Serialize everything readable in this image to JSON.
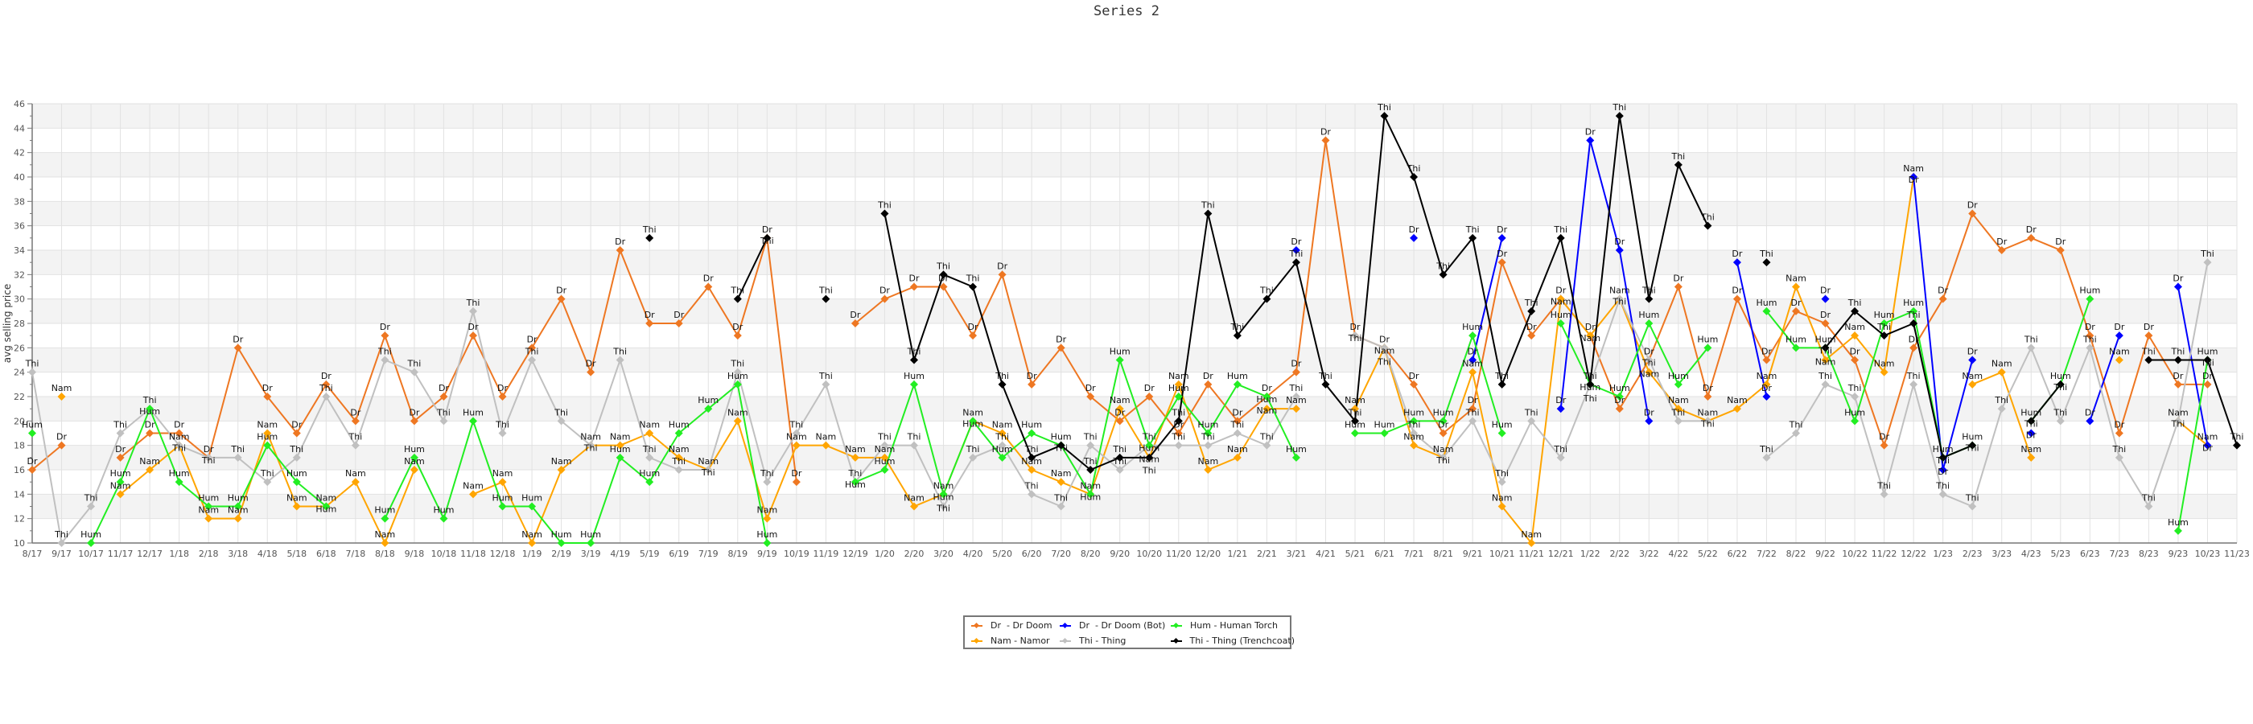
{
  "chart_data": {
    "type": "line",
    "title": "Series 2",
    "xlabel": "",
    "ylabel": "avg selling price",
    "ylim": [
      10,
      46
    ],
    "ytick_step": 2,
    "grid": true,
    "legend_position": "bottom-center",
    "categories": [
      "8/17",
      "9/17",
      "10/17",
      "11/17",
      "12/17",
      "1/18",
      "2/18",
      "3/18",
      "4/18",
      "5/18",
      "6/18",
      "7/18",
      "8/18",
      "9/18",
      "10/18",
      "11/18",
      "12/18",
      "1/19",
      "2/19",
      "3/19",
      "4/19",
      "5/19",
      "6/19",
      "7/19",
      "8/19",
      "9/19",
      "10/19",
      "11/19",
      "12/19",
      "1/20",
      "2/20",
      "3/20",
      "4/20",
      "5/20",
      "6/20",
      "7/20",
      "8/20",
      "9/20",
      "10/20",
      "11/20",
      "12/20",
      "1/21",
      "2/21",
      "3/21",
      "4/21",
      "5/21",
      "6/21",
      "7/21",
      "8/21",
      "9/21",
      "10/21",
      "11/21",
      "12/21",
      "1/22",
      "2/22",
      "3/22",
      "4/22",
      "5/22",
      "6/22",
      "7/22",
      "8/22",
      "9/22",
      "10/22",
      "11/22",
      "12/22",
      "1/23",
      "2/23",
      "3/23",
      "4/23",
      "5/23",
      "6/23",
      "7/23",
      "8/23",
      "9/23",
      "10/23",
      "11/23"
    ],
    "series": [
      {
        "name": "Dr Doom",
        "point_label": "Dr",
        "legend": "Dr  - Dr Doom",
        "color": "#ee7722",
        "values": [
          16,
          18,
          null,
          17,
          19,
          19,
          17,
          26,
          22,
          19,
          23,
          20,
          27,
          20,
          22,
          27,
          22,
          26,
          30,
          24,
          34,
          28,
          28,
          31,
          27,
          35,
          15,
          null,
          28,
          30,
          31,
          31,
          27,
          32,
          23,
          26,
          22,
          20,
          22,
          19,
          23,
          20,
          22,
          24,
          43,
          27,
          26,
          23,
          19,
          21,
          33,
          27,
          30,
          27,
          21,
          25,
          31,
          22,
          30,
          25,
          29,
          28,
          25,
          18,
          26,
          30,
          37,
          34,
          35,
          34,
          27,
          19,
          27,
          23,
          23,
          null
        ]
      },
      {
        "name": "Namor",
        "point_label": "Nam",
        "legend": "Nam - Namor",
        "color": "#ffa500",
        "values": [
          null,
          22,
          null,
          14,
          16,
          18,
          12,
          12,
          19,
          13,
          13,
          15,
          10,
          16,
          null,
          14,
          15,
          10,
          16,
          18,
          18,
          19,
          17,
          16,
          20,
          12,
          18,
          18,
          17,
          17,
          13,
          14,
          20,
          19,
          16,
          15,
          14,
          21,
          17,
          23,
          16,
          17,
          21,
          21,
          null,
          21,
          26,
          18,
          17,
          24,
          13,
          10,
          30,
          27,
          30,
          24,
          21,
          20,
          21,
          23,
          31,
          25,
          27,
          24,
          40,
          null,
          23,
          24,
          17,
          null,
          null,
          25,
          null,
          20,
          18,
          null
        ]
      },
      {
        "name": "Dr Doom (Bot)",
        "point_label": "Dr",
        "legend": "Dr  - Dr Doom (Bot)",
        "color": "#0000ff",
        "values": [
          null,
          null,
          null,
          null,
          null,
          null,
          null,
          null,
          null,
          null,
          null,
          null,
          null,
          null,
          null,
          null,
          null,
          null,
          null,
          null,
          null,
          null,
          null,
          null,
          null,
          null,
          null,
          null,
          null,
          null,
          null,
          null,
          null,
          null,
          null,
          null,
          null,
          null,
          null,
          null,
          null,
          null,
          null,
          34,
          null,
          null,
          null,
          35,
          null,
          25,
          35,
          null,
          21,
          43,
          34,
          20,
          null,
          null,
          33,
          22,
          null,
          30,
          null,
          null,
          40,
          16,
          25,
          null,
          19,
          null,
          20,
          27,
          null,
          31,
          18,
          null
        ]
      },
      {
        "name": "Thing",
        "point_label": "Thi",
        "legend": "Thi - Thing",
        "color": "#c0c0c0",
        "values": [
          24,
          10,
          13,
          19,
          21,
          18,
          17,
          17,
          15,
          17,
          22,
          18,
          25,
          24,
          20,
          29,
          19,
          25,
          20,
          18,
          25,
          17,
          16,
          16,
          24,
          15,
          19,
          23,
          15,
          18,
          18,
          13,
          17,
          18,
          14,
          13,
          18,
          16,
          18,
          18,
          18,
          19,
          18,
          22,
          null,
          27,
          26,
          19,
          17,
          20,
          15,
          20,
          17,
          23,
          30,
          25,
          20,
          20,
          null,
          17,
          19,
          23,
          22,
          14,
          23,
          14,
          13,
          21,
          26,
          20,
          26,
          17,
          13,
          20,
          33,
          null
        ]
      },
      {
        "name": "Human Torch",
        "point_label": "Hum",
        "legend": "Hum - Human Torch",
        "color": "#22ee22",
        "values": [
          19,
          null,
          10,
          15,
          21,
          15,
          13,
          13,
          18,
          15,
          13,
          null,
          12,
          17,
          12,
          20,
          13,
          13,
          10,
          10,
          17,
          15,
          19,
          21,
          23,
          10,
          null,
          null,
          15,
          16,
          23,
          14,
          20,
          17,
          19,
          18,
          14,
          25,
          18,
          22,
          19,
          23,
          22,
          17,
          null,
          19,
          19,
          20,
          20,
          27,
          19,
          null,
          28,
          23,
          22,
          28,
          23,
          26,
          null,
          29,
          26,
          26,
          20,
          28,
          29,
          17,
          18,
          null,
          20,
          23,
          30,
          null,
          null,
          11,
          25,
          null
        ]
      },
      {
        "name": "Thing (Trenchcoat)",
        "point_label": "Thi",
        "legend": "Thi - Thing (Trenchcoat)",
        "color": "#000000",
        "values": [
          null,
          null,
          null,
          null,
          null,
          null,
          null,
          null,
          null,
          null,
          null,
          null,
          null,
          null,
          null,
          null,
          null,
          null,
          null,
          null,
          null,
          35,
          null,
          null,
          30,
          35,
          null,
          30,
          null,
          37,
          25,
          32,
          31,
          23,
          17,
          18,
          16,
          17,
          17,
          20,
          37,
          27,
          30,
          33,
          23,
          20,
          45,
          40,
          32,
          35,
          23,
          29,
          35,
          23,
          45,
          30,
          41,
          36,
          null,
          33,
          null,
          26,
          29,
          27,
          28,
          17,
          18,
          null,
          20,
          23,
          null,
          null,
          25,
          25,
          25,
          18
        ]
      }
    ]
  }
}
